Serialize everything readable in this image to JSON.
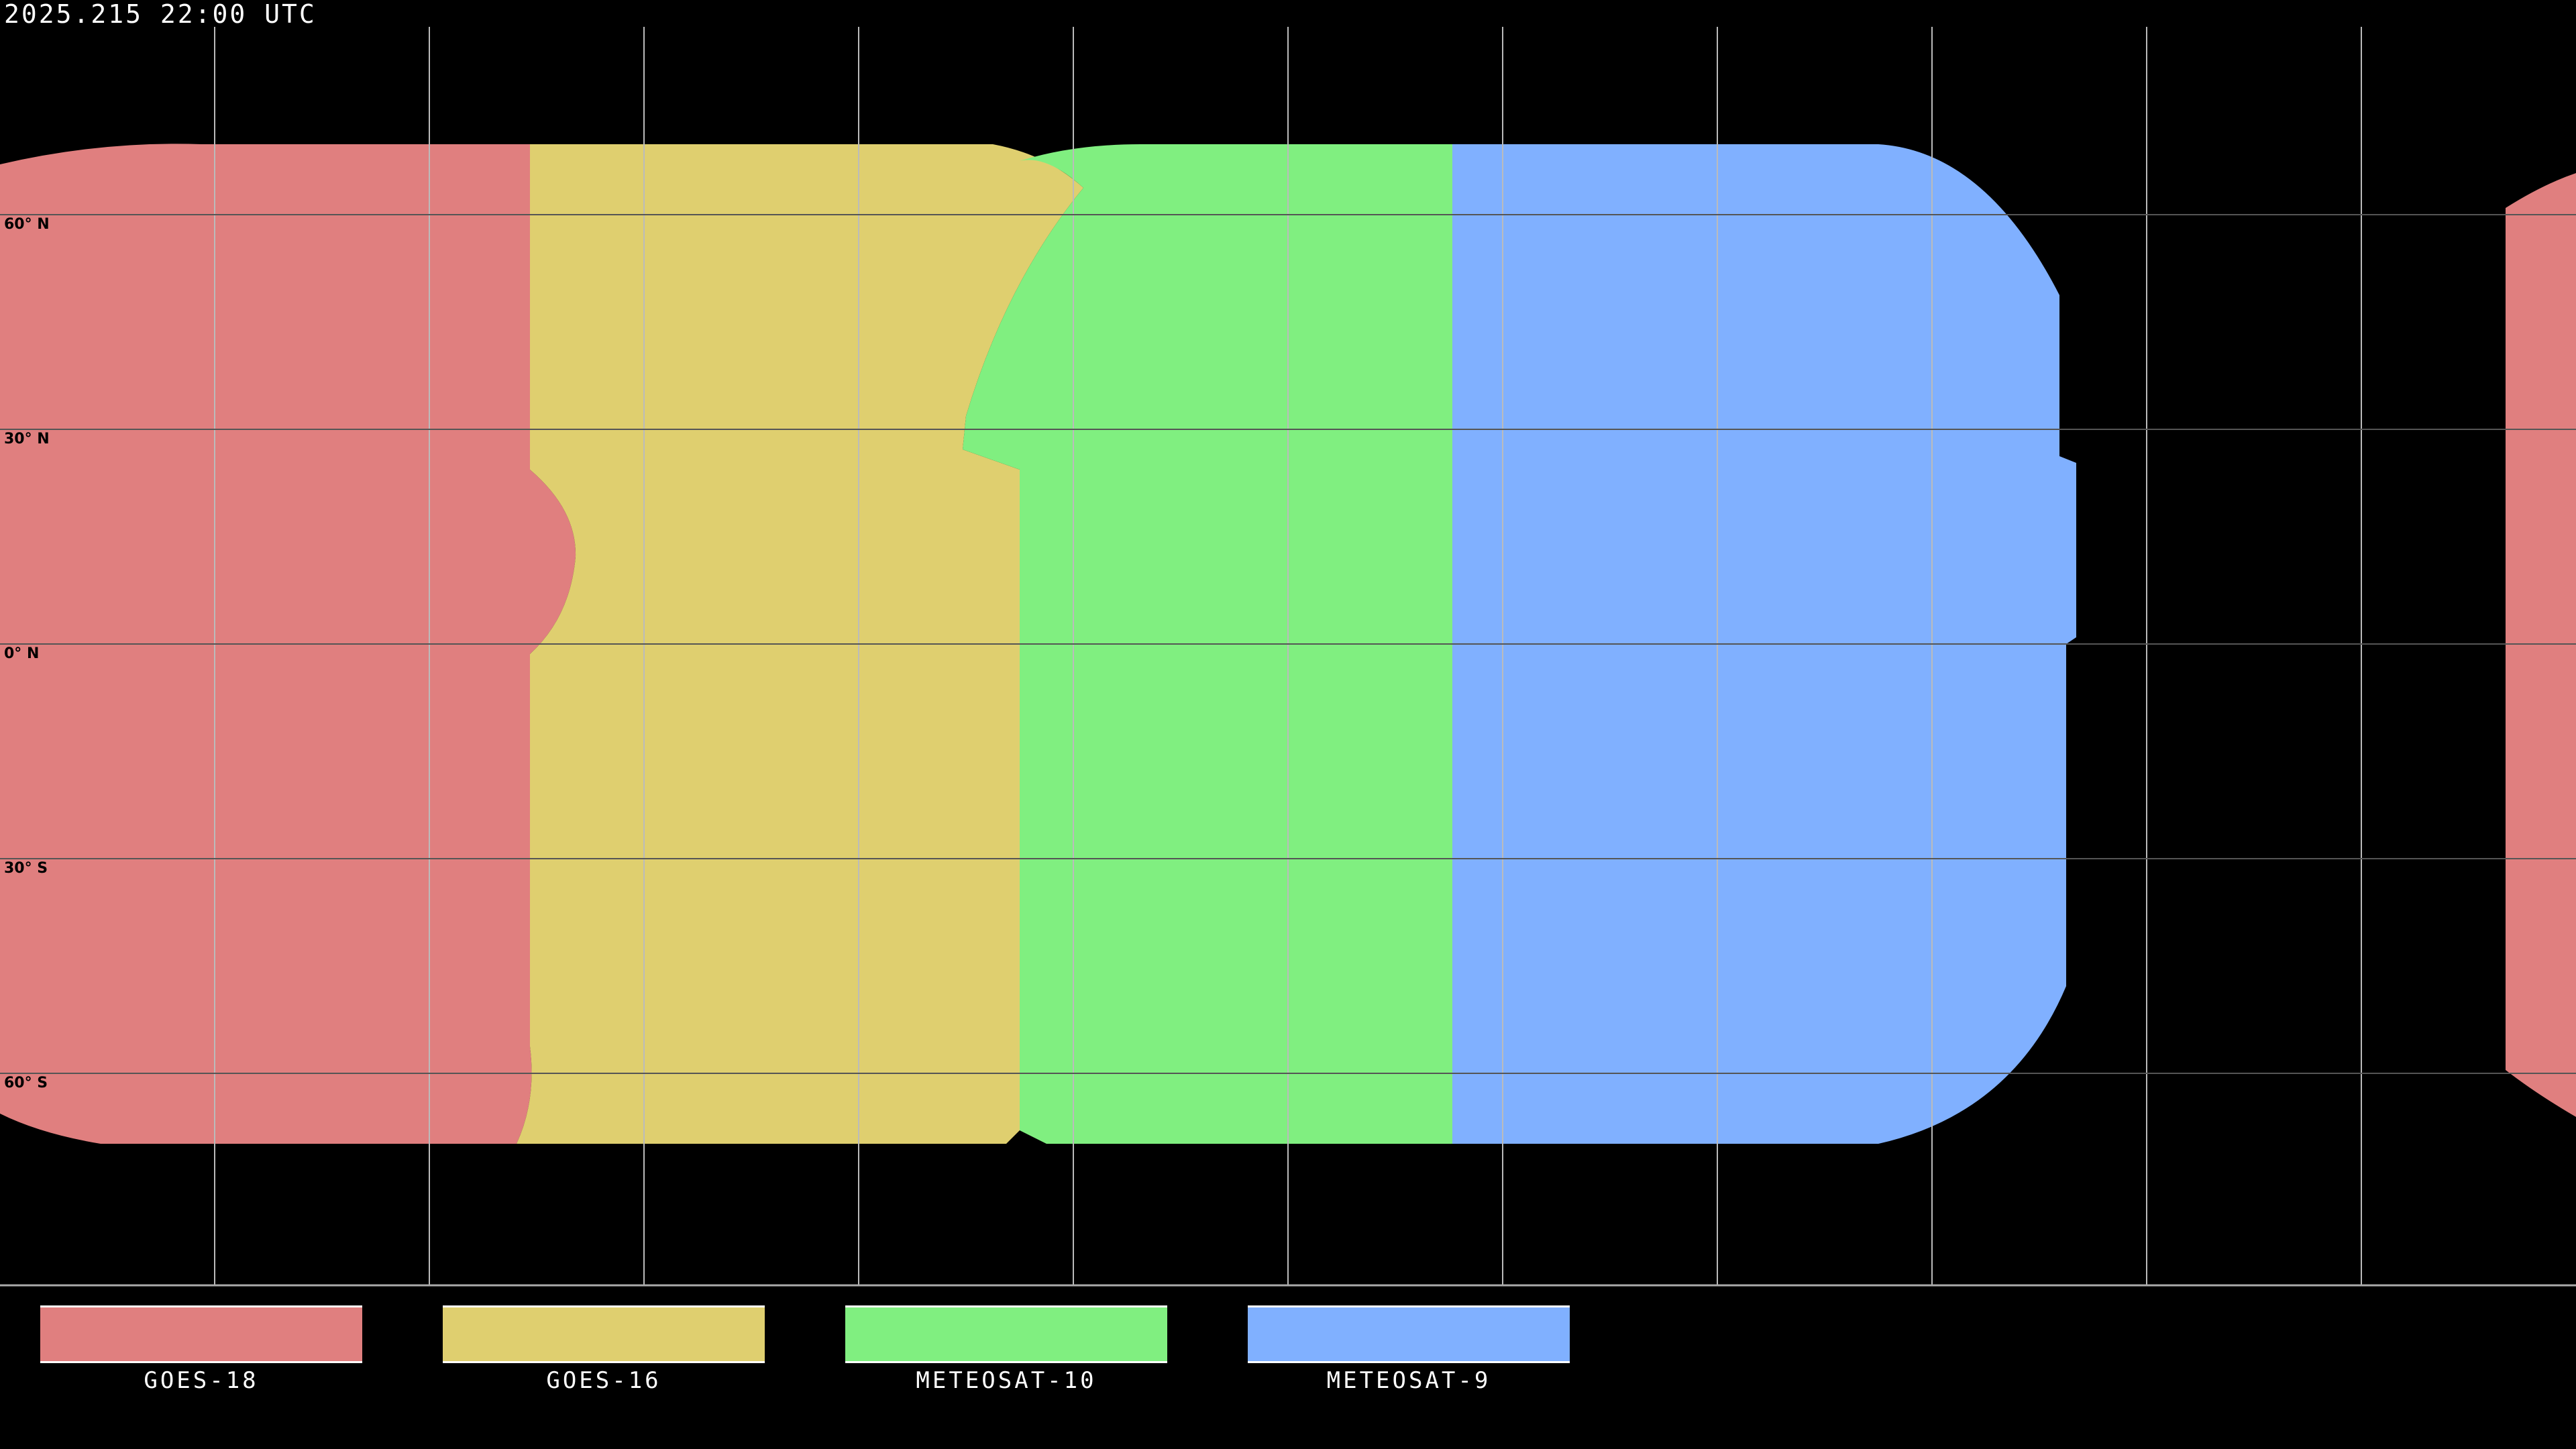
{
  "title": "2025.215 22:00 UTC",
  "lat_labels": [
    "60° N",
    "30° N",
    "0° N",
    "30° S",
    "60° S"
  ],
  "legend": [
    {
      "label": "GOES-18",
      "color": "#e07f7f"
    },
    {
      "label": "GOES-16",
      "color": "#dfcf6f"
    },
    {
      "label": "METEOSAT-10",
      "color": "#80ef80"
    },
    {
      "label": "METEOSAT-9",
      "color": "#80b0ff"
    }
  ],
  "grid": {
    "lon_step_deg": 30,
    "lat_step_deg": 30,
    "color": "#c8c8c8"
  }
}
